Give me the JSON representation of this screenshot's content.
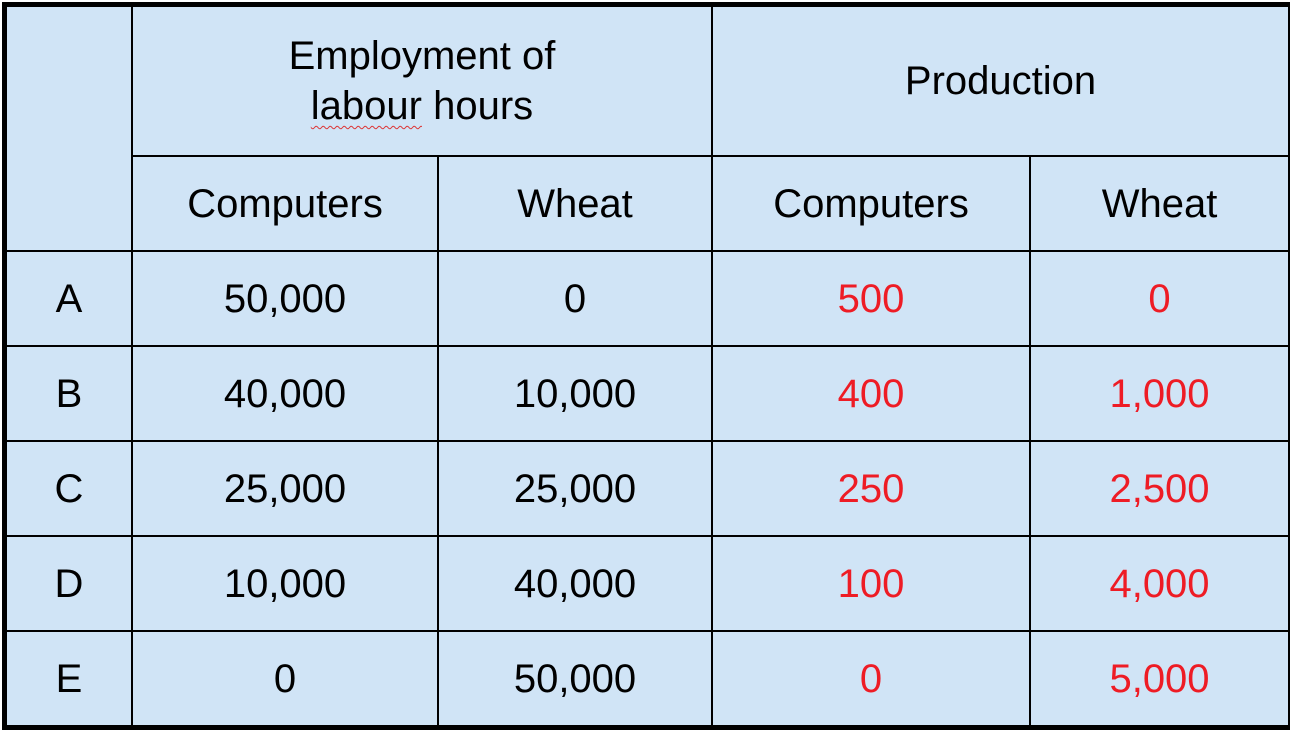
{
  "table": {
    "group_headers": {
      "employment_line1": "Employment of",
      "employment_word1": "labour",
      "employment_word2": "hours",
      "production": "Production"
    },
    "sub_headers": [
      "Computers",
      "Wheat",
      "Computers",
      "Wheat"
    ],
    "rows": [
      {
        "label": "A",
        "emp_computers": "50,000",
        "emp_wheat": "0",
        "prod_computers": "500",
        "prod_wheat": "0"
      },
      {
        "label": "B",
        "emp_computers": "40,000",
        "emp_wheat": "10,000",
        "prod_computers": "400",
        "prod_wheat": "1,000"
      },
      {
        "label": "C",
        "emp_computers": "25,000",
        "emp_wheat": "25,000",
        "prod_computers": "250",
        "prod_wheat": "2,500"
      },
      {
        "label": "D",
        "emp_computers": "10,000",
        "emp_wheat": "40,000",
        "prod_computers": "100",
        "prod_wheat": "4,000"
      },
      {
        "label": "E",
        "emp_computers": "0",
        "emp_wheat": "50,000",
        "prod_computers": "0",
        "prod_wheat": "5,000"
      }
    ],
    "colors": {
      "background": "#d0e4f6",
      "production_text": "#ee1c25",
      "border": "#000000"
    }
  }
}
